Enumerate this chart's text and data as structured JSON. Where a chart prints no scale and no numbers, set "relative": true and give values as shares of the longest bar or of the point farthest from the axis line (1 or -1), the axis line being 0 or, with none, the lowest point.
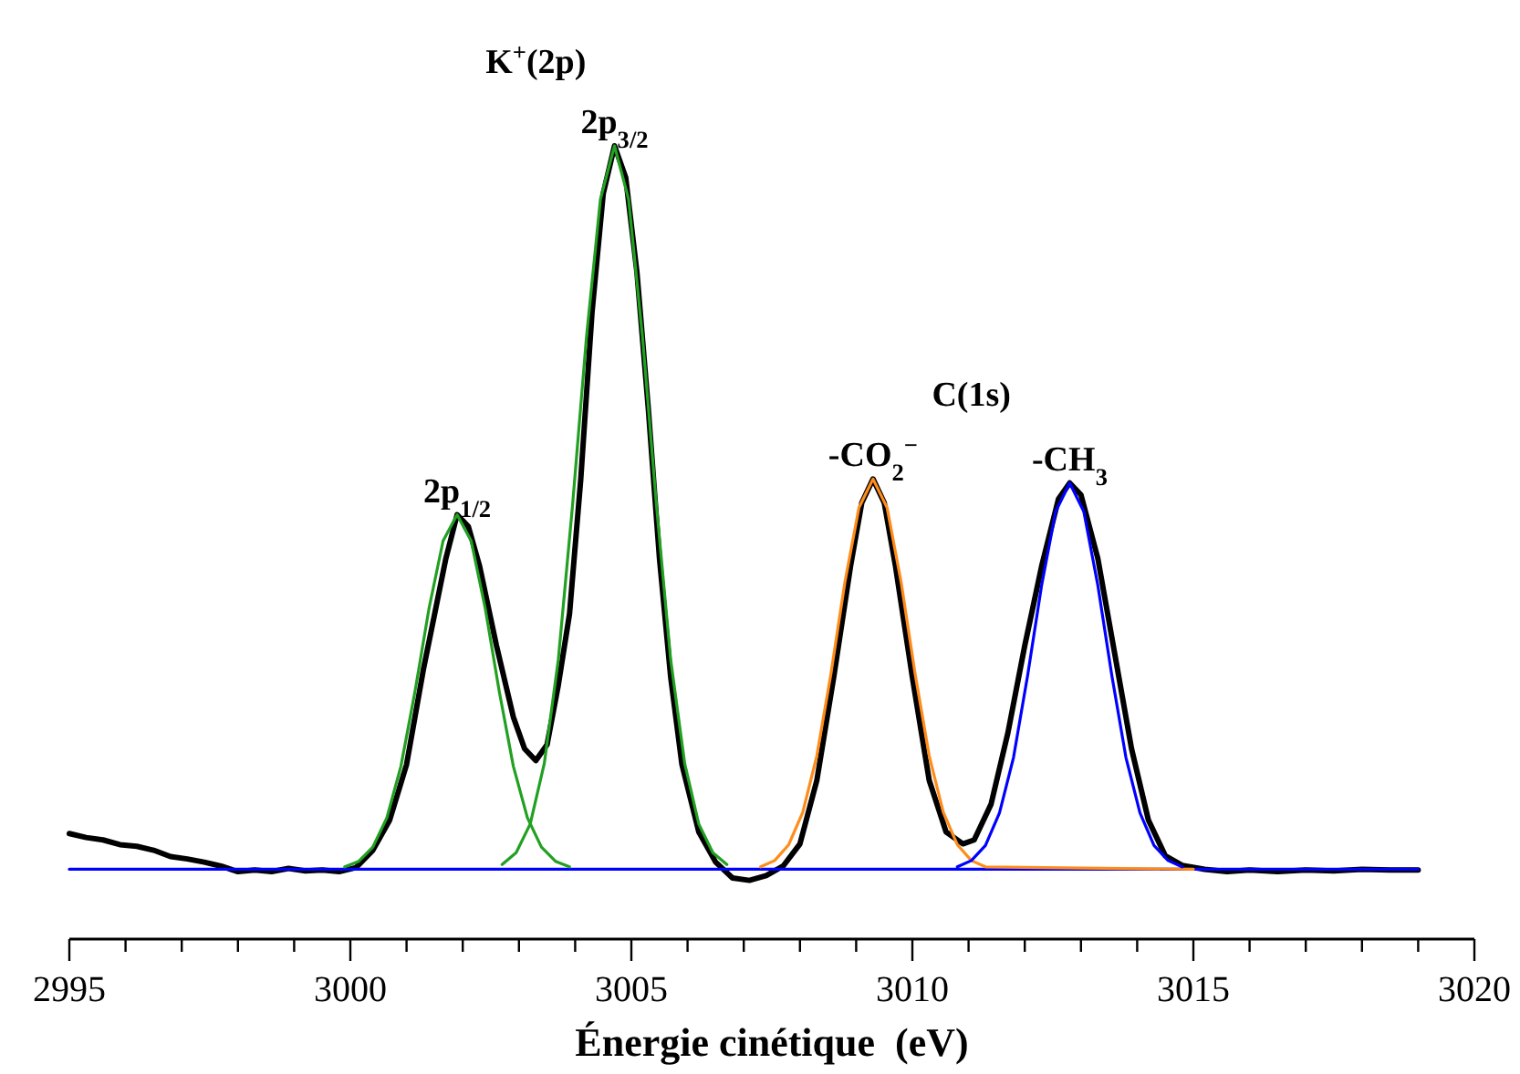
{
  "chart_data": {
    "type": "line",
    "relative": true,
    "xlabel": "Énergie cinétique  (eV)",
    "xlim": [
      2995,
      3020
    ],
    "xticks": [
      2995,
      {
        "value": 2996,
        "label": null
      },
      {
        "value": 2997,
        "label": null
      },
      {
        "value": 2998,
        "label": null
      },
      {
        "value": 2999,
        "label": null
      },
      3000,
      {
        "value": 3001,
        "label": null
      },
      {
        "value": 3002,
        "label": null
      },
      {
        "value": 3003,
        "label": null
      },
      {
        "value": 3004,
        "label": null
      },
      3005,
      {
        "value": 3006,
        "label": null
      },
      {
        "value": 3007,
        "label": null
      },
      {
        "value": 3008,
        "label": null
      },
      {
        "value": 3009,
        "label": null
      },
      3010,
      {
        "value": 3011,
        "label": null
      },
      {
        "value": 3012,
        "label": null
      },
      {
        "value": 3013,
        "label": null
      },
      {
        "value": 3014,
        "label": null
      },
      3015,
      {
        "value": 3016,
        "label": null
      },
      {
        "value": 3017,
        "label": null
      },
      {
        "value": 3018,
        "label": null
      },
      {
        "value": 3019,
        "label": null
      },
      3020
    ],
    "grid": false,
    "marker": "none",
    "line_style": "solid",
    "series": [
      {
        "color": "#000000",
        "x": [
          2995,
          2995.3,
          2995.6,
          2995.9,
          2996.2,
          2996.5,
          2996.8,
          2997.1,
          2997.4,
          2997.7,
          2998,
          2998.3,
          2998.6,
          2998.9,
          2999.2,
          2999.5,
          2999.8,
          3000.1,
          3000.4,
          3000.7,
          3001,
          3001.3,
          3001.5,
          3001.7,
          3001.9,
          3002.1,
          3002.3,
          3002.6,
          3002.9,
          3003.1,
          3003.3,
          3003.5,
          3003.7,
          3003.9,
          3004.1,
          3004.3,
          3004.5,
          3004.7,
          3004.9,
          3005.1,
          3005.3,
          3005.5,
          3005.7,
          3005.9,
          3006.2,
          3006.5,
          3006.8,
          3007.1,
          3007.4,
          3007.7,
          3008,
          3008.3,
          3008.6,
          3008.9,
          3009.1,
          3009.3,
          3009.5,
          3009.7,
          3010,
          3010.3,
          3010.6,
          3010.9,
          3011.1,
          3011.4,
          3011.7,
          3012,
          3012.3,
          3012.6,
          3012.8,
          3013,
          3013.3,
          3013.6,
          3013.9,
          3014.2,
          3014.5,
          3014.8,
          3015.2,
          3015.6,
          3016,
          3016.5,
          3017,
          3017.5,
          3018,
          3018.5,
          3019
        ],
        "values": [
          0.133,
          0.128,
          0.125,
          0.119,
          0.117,
          0.112,
          0.104,
          0.101,
          0.097,
          0.092,
          0.085,
          0.087,
          0.085,
          0.089,
          0.086,
          0.087,
          0.085,
          0.09,
          0.112,
          0.15,
          0.22,
          0.34,
          0.41,
          0.48,
          0.535,
          0.52,
          0.47,
          0.37,
          0.28,
          0.24,
          0.225,
          0.245,
          0.32,
          0.41,
          0.58,
          0.79,
          0.94,
          1.0,
          0.96,
          0.84,
          0.67,
          0.48,
          0.33,
          0.22,
          0.135,
          0.097,
          0.077,
          0.074,
          0.08,
          0.092,
          0.12,
          0.2,
          0.33,
          0.47,
          0.55,
          0.58,
          0.55,
          0.47,
          0.33,
          0.2,
          0.135,
          0.12,
          0.125,
          0.17,
          0.26,
          0.37,
          0.47,
          0.555,
          0.575,
          0.56,
          0.48,
          0.36,
          0.24,
          0.15,
          0.105,
          0.093,
          0.088,
          0.085,
          0.087,
          0.085,
          0.087,
          0.086,
          0.088,
          0.087,
          0.087
        ]
      },
      {
        "color": "#0000ff",
        "x": [
          2995,
          3019
        ],
        "values": [
          0.088,
          0.088
        ]
      },
      {
        "color": "#22a022",
        "x": [
          2999.9,
          3000.15,
          3000.4,
          3000.65,
          3000.9,
          3001.15,
          3001.4,
          3001.65,
          3001.9,
          3002.15,
          3002.4,
          3002.65,
          3002.9,
          3003.15,
          3003.4,
          3003.65,
          3003.9
        ],
        "values": [
          0.091,
          0.098,
          0.116,
          0.153,
          0.218,
          0.312,
          0.417,
          0.502,
          0.535,
          0.502,
          0.417,
          0.312,
          0.218,
          0.153,
          0.116,
          0.098,
          0.091
        ]
      },
      {
        "color": "#22a022",
        "x": [
          3002.7,
          3002.95,
          3003.2,
          3003.45,
          3003.7,
          3003.95,
          3004.2,
          3004.45,
          3004.7,
          3004.95,
          3005.2,
          3005.45,
          3005.7,
          3005.95,
          3006.2,
          3006.45,
          3006.7
        ],
        "values": [
          0.094,
          0.109,
          0.145,
          0.221,
          0.352,
          0.544,
          0.758,
          0.933,
          1.0,
          0.933,
          0.758,
          0.544,
          0.352,
          0.221,
          0.145,
          0.109,
          0.094
        ]
      },
      {
        "color": "#ff8c1a",
        "x": [
          3007.3,
          3007.55,
          3007.8,
          3008.05,
          3008.3,
          3008.55,
          3008.8,
          3009.05,
          3009.3,
          3009.55,
          3009.8,
          3010.05,
          3010.3,
          3010.55,
          3010.8,
          3011.05,
          3011.3,
          3015
        ],
        "values": [
          0.091,
          0.099,
          0.119,
          0.16,
          0.231,
          0.334,
          0.45,
          0.544,
          0.58,
          0.544,
          0.45,
          0.334,
          0.231,
          0.16,
          0.119,
          0.099,
          0.091,
          0.088
        ]
      },
      {
        "color": "#0000ff",
        "x": [
          3010.8,
          3011.05,
          3011.3,
          3011.55,
          3011.8,
          3012.05,
          3012.3,
          3012.55,
          3012.8,
          3013.05,
          3013.3,
          3013.55,
          3013.8,
          3014.05,
          3014.3,
          3014.55,
          3014.8
        ],
        "values": [
          0.091,
          0.099,
          0.118,
          0.159,
          0.229,
          0.332,
          0.446,
          0.539,
          0.575,
          0.539,
          0.446,
          0.332,
          0.229,
          0.159,
          0.118,
          0.099,
          0.091
        ]
      }
    ],
    "annotations": [
      "K$^{+}$(2p)",
      {
        "text": "2p$_{3/2}$",
        "x": 3004.7,
        "y": 1.0
      },
      {
        "text": "2p$_{1/2}$",
        "x": 3001.9,
        "y": 0.535
      },
      "C(1s)",
      {
        "text": "-CO$_{2}$$^{−}$",
        "x": 3009.3,
        "y": 0.58
      },
      {
        "text": "-CH$_{3}$",
        "x": 3012.8,
        "y": 0.575
      }
    ]
  }
}
